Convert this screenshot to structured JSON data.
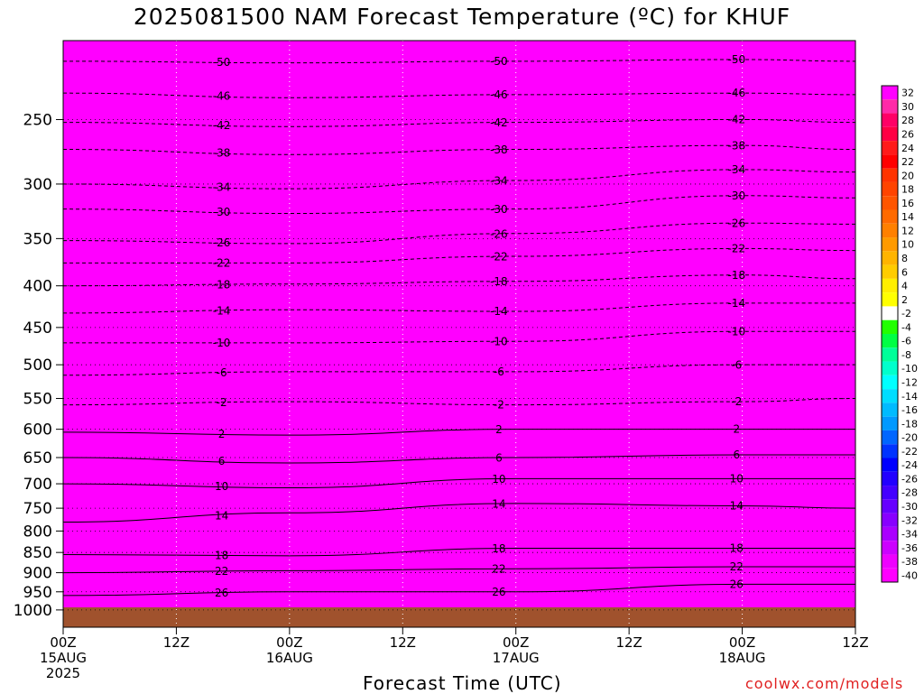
{
  "chart_data": {
    "type": "heatmap",
    "title": "2025081500 NAM Forecast Temperature (ºC) for KHUF",
    "xlabel": "Forecast Time (UTC)",
    "ylabel": "",
    "credit": "coolwx.com/models",
    "y_scale": "log",
    "y_inverted": true,
    "y_ticks": [
      250,
      300,
      350,
      400,
      450,
      500,
      550,
      600,
      650,
      700,
      750,
      800,
      850,
      900,
      950,
      1000
    ],
    "x_ticks": [
      {
        "hour": 0,
        "lines": [
          "00Z",
          "15AUG",
          "2025"
        ]
      },
      {
        "hour": 12,
        "lines": [
          "12Z"
        ]
      },
      {
        "hour": 24,
        "lines": [
          "00Z",
          "16AUG"
        ]
      },
      {
        "hour": 36,
        "lines": [
          "12Z"
        ]
      },
      {
        "hour": 48,
        "lines": [
          "00Z",
          "17AUG"
        ]
      },
      {
        "hour": 60,
        "lines": [
          "12Z"
        ]
      },
      {
        "hour": 72,
        "lines": [
          "00Z",
          "18AUG"
        ]
      },
      {
        "hour": 84,
        "lines": [
          "12Z"
        ]
      }
    ],
    "x_range_hours": [
      0,
      84
    ],
    "y_range_hpa": [
      1050,
      200
    ],
    "grid": "dotted",
    "colorbar": {
      "placement": "right",
      "labels": [
        "32",
        "30",
        "28",
        "26",
        "24",
        "22",
        "20",
        "18",
        "16",
        "14",
        "12",
        "10",
        "8",
        "6",
        "4",
        "2",
        "-2",
        "-4",
        "-6",
        "-8",
        "-10",
        "-12",
        "-14",
        "-16",
        "-18",
        "-20",
        "-22",
        "-24",
        "-26",
        "-28",
        "-30",
        "-32",
        "-34",
        "-36",
        "-38",
        "-40"
      ],
      "colors": [
        "#ff00ff",
        "#ff2aa8",
        "#ff0066",
        "#ff0044",
        "#ff1a1a",
        "#ff0000",
        "#ff3300",
        "#ff4400",
        "#ff5500",
        "#ff6a00",
        "#ff8000",
        "#ff9a00",
        "#ffb400",
        "#ffcc00",
        "#ffee00",
        "#ffff00",
        "#ffffff",
        "#22ff00",
        "#00ff44",
        "#00ff99",
        "#00ffcc",
        "#00ffff",
        "#00ddff",
        "#00bbff",
        "#0099ff",
        "#0066ff",
        "#0033ff",
        "#0000ff",
        "#2200ff",
        "#4400ff",
        "#6600ff",
        "#8800ff",
        "#aa00ff",
        "#cc00ff",
        "#ee00ff",
        "#ff00ff"
      ]
    },
    "series": [
      {
        "value": -50,
        "levels": [
          [
            0,
            212
          ],
          [
            24,
            213
          ],
          [
            48,
            212
          ],
          [
            72,
            211
          ],
          [
            84,
            212
          ]
        ]
      },
      {
        "value": -46,
        "levels": [
          [
            0,
            232
          ],
          [
            24,
            235
          ],
          [
            48,
            233
          ],
          [
            72,
            232
          ],
          [
            84,
            233
          ]
        ]
      },
      {
        "value": -42,
        "levels": [
          [
            0,
            252
          ],
          [
            24,
            255
          ],
          [
            48,
            252
          ],
          [
            72,
            250
          ],
          [
            84,
            252
          ]
        ]
      },
      {
        "value": -38,
        "levels": [
          [
            0,
            272
          ],
          [
            24,
            276
          ],
          [
            48,
            272
          ],
          [
            72,
            269
          ],
          [
            84,
            272
          ]
        ]
      },
      {
        "value": -34,
        "levels": [
          [
            0,
            300
          ],
          [
            24,
            304
          ],
          [
            48,
            297
          ],
          [
            72,
            288
          ],
          [
            84,
            290
          ]
        ]
      },
      {
        "value": -30,
        "levels": [
          [
            0,
            322
          ],
          [
            24,
            326
          ],
          [
            48,
            322
          ],
          [
            72,
            310
          ],
          [
            84,
            312
          ]
        ]
      },
      {
        "value": -26,
        "levels": [
          [
            0,
            352
          ],
          [
            24,
            355
          ],
          [
            48,
            345
          ],
          [
            72,
            335
          ],
          [
            84,
            336
          ]
        ]
      },
      {
        "value": -22,
        "levels": [
          [
            0,
            375
          ],
          [
            24,
            375
          ],
          [
            48,
            368
          ],
          [
            72,
            360
          ],
          [
            84,
            362
          ]
        ]
      },
      {
        "value": -18,
        "levels": [
          [
            0,
            400
          ],
          [
            24,
            398
          ],
          [
            48,
            395
          ],
          [
            72,
            388
          ],
          [
            84,
            392
          ]
        ]
      },
      {
        "value": -14,
        "levels": [
          [
            0,
            432
          ],
          [
            24,
            428
          ],
          [
            48,
            430
          ],
          [
            72,
            420
          ],
          [
            84,
            420
          ]
        ]
      },
      {
        "value": -10,
        "levels": [
          [
            0,
            470
          ],
          [
            24,
            470
          ],
          [
            48,
            468
          ],
          [
            72,
            455
          ],
          [
            84,
            455
          ]
        ]
      },
      {
        "value": -6,
        "levels": [
          [
            0,
            515
          ],
          [
            24,
            510
          ],
          [
            48,
            510
          ],
          [
            72,
            500
          ],
          [
            84,
            500
          ]
        ]
      },
      {
        "value": -2,
        "levels": [
          [
            0,
            560
          ],
          [
            24,
            555
          ],
          [
            48,
            560
          ],
          [
            72,
            555
          ],
          [
            84,
            550
          ]
        ]
      },
      {
        "value": 2,
        "levels": [
          [
            0,
            605
          ],
          [
            24,
            610
          ],
          [
            48,
            600
          ],
          [
            72,
            600
          ],
          [
            84,
            600
          ]
        ]
      },
      {
        "value": 6,
        "levels": [
          [
            0,
            650
          ],
          [
            24,
            660
          ],
          [
            48,
            650
          ],
          [
            72,
            645
          ],
          [
            84,
            645
          ]
        ]
      },
      {
        "value": 10,
        "levels": [
          [
            0,
            700
          ],
          [
            24,
            708
          ],
          [
            48,
            690
          ],
          [
            72,
            690
          ],
          [
            84,
            690
          ]
        ]
      },
      {
        "value": 14,
        "levels": [
          [
            0,
            780
          ],
          [
            24,
            760
          ],
          [
            48,
            740
          ],
          [
            72,
            745
          ],
          [
            84,
            750
          ]
        ]
      },
      {
        "value": 18,
        "levels": [
          [
            0,
            855
          ],
          [
            24,
            858
          ],
          [
            48,
            840
          ],
          [
            72,
            840
          ],
          [
            84,
            840
          ]
        ]
      },
      {
        "value": 22,
        "levels": [
          [
            0,
            900
          ],
          [
            24,
            895
          ],
          [
            48,
            890
          ],
          [
            72,
            885
          ],
          [
            84,
            885
          ]
        ]
      },
      {
        "value": 26,
        "levels": [
          [
            0,
            960
          ],
          [
            24,
            950
          ],
          [
            48,
            950
          ],
          [
            72,
            930
          ],
          [
            84,
            930
          ]
        ]
      }
    ]
  }
}
